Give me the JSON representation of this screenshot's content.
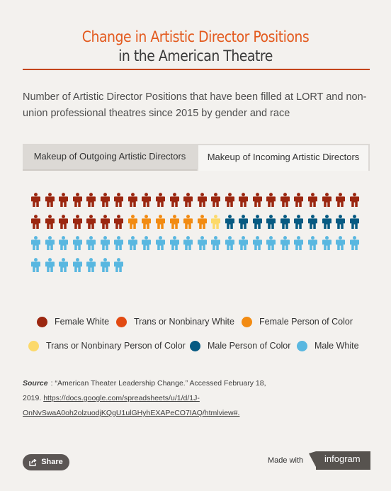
{
  "header": {
    "title_line1": "Change in Artistic Director Positions",
    "title_line2": "in the American Theatre"
  },
  "description": "Number of Artistic Director Positions that have been filled at LORT and non-union professional theatres since 2015 by gender and race",
  "tabs": [
    {
      "label": "Makeup of Outgoing Artistic Directors",
      "active": false
    },
    {
      "label": "Makeup of Incoming Artistic Directors",
      "active": true
    }
  ],
  "chart_data": {
    "type": "pictogram",
    "per_row": 24,
    "categories": [
      {
        "name": "Female White",
        "count": 31,
        "color": "#9b2710"
      },
      {
        "name": "Trans or Nonbinary White",
        "count": 0,
        "color": "#e24a12"
      },
      {
        "name": "Female Person of Color",
        "count": 6,
        "color": "#f28b12"
      },
      {
        "name": "Trans or Nonbinary Person of Color",
        "count": 1,
        "color": "#fcd96a"
      },
      {
        "name": "Male Person of Color",
        "count": 10,
        "color": "#075a82"
      },
      {
        "name": "Male White",
        "count": 31,
        "color": "#59b7e0"
      }
    ]
  },
  "source": {
    "label": "Source",
    "text": "“American Theater Leadership Change.” Accessed February 18, 2019. ",
    "url": "https://docs.google.com/spreadsheets/u/1/d/1J-OnNvSwaA0oh2olzuodjKQgU1ulGHyhEXAPeCO7IAQ/htmlview#."
  },
  "footer": {
    "share_label": "Share",
    "made_with": "Made with",
    "brand": "infogram"
  },
  "colors": {
    "title_accent": "#e35a1e",
    "rule": "#c4451c",
    "share_bg": "#5b5654"
  }
}
